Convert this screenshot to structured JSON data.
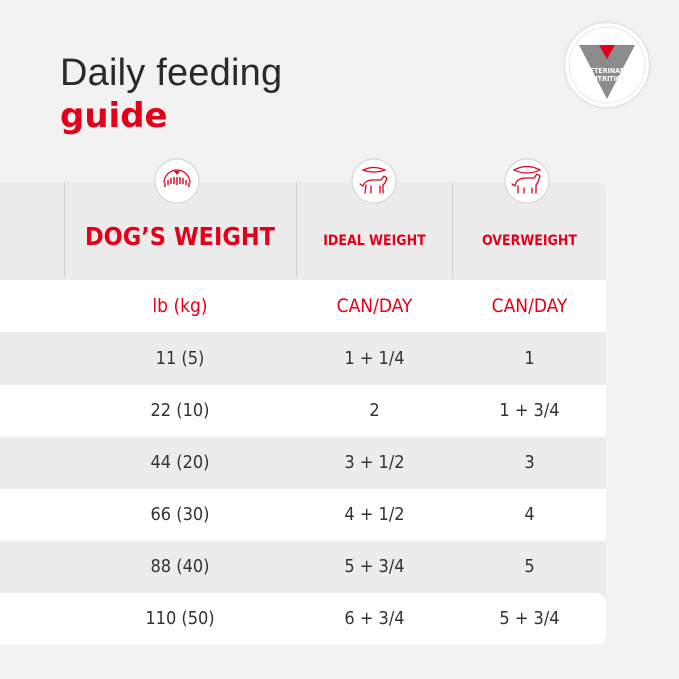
{
  "title": {
    "line1": "Daily feeding",
    "line2": "guide"
  },
  "badge": {
    "line1": "VETERINARY",
    "line2": "NUTRITION"
  },
  "table": {
    "headers": [
      "DOG’S WEIGHT",
      "IDEAL WEIGHT",
      "OVERWEIGHT"
    ],
    "header_icons": [
      "weighing-scale-icon",
      "ideal-weight-dog-icon",
      "overweight-dog-icon"
    ],
    "units": [
      "lb (kg)",
      "CAN/DAY",
      "CAN/DAY"
    ],
    "rows": [
      [
        "11 (5)",
        "1 + 1/4",
        "1"
      ],
      [
        "22 (10)",
        "2",
        "1 + 3/4"
      ],
      [
        "44 (20)",
        "3 + 1/2",
        "3"
      ],
      [
        "66 (30)",
        "4 + 1/2",
        "4"
      ],
      [
        "88 (40)",
        "5 + 3/4",
        "5"
      ],
      [
        "110 (50)",
        "6 + 3/4",
        "5 + 3/4"
      ]
    ]
  },
  "colors": {
    "brand_red": "#e2001a",
    "text": "#333333",
    "stripe": "#ffffff",
    "band": "#ececec"
  }
}
